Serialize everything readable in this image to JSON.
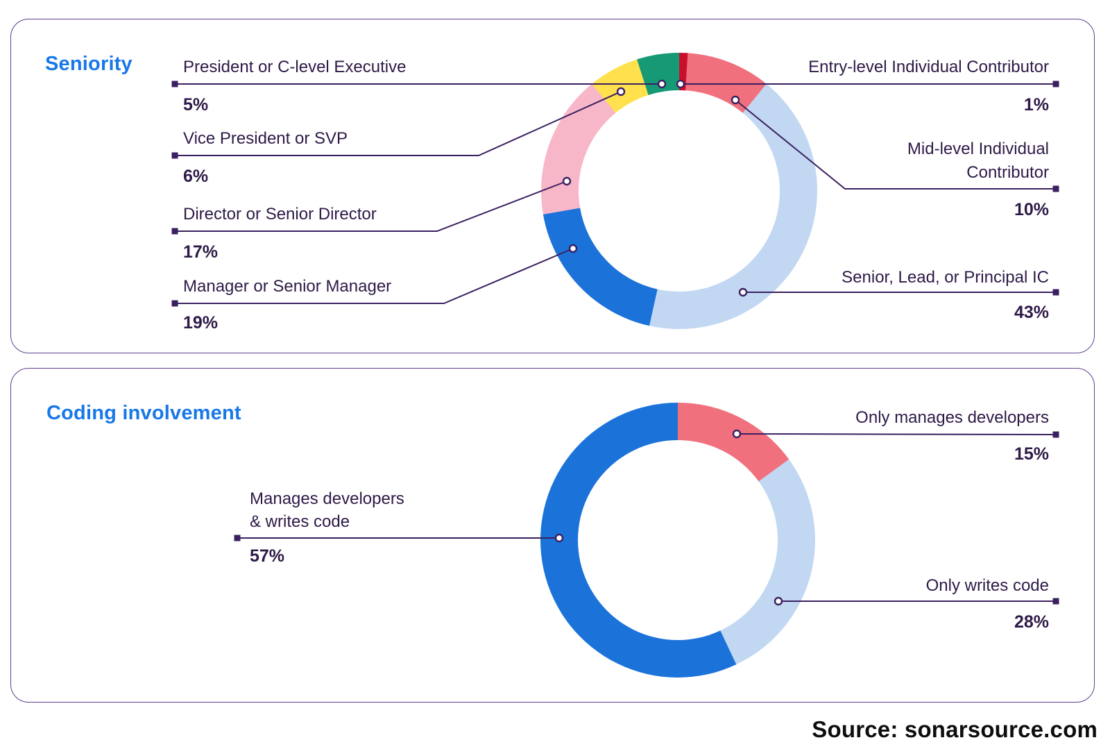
{
  "page": {
    "background": "#FFFFFF",
    "source_text": "Source: sonarsource.com"
  },
  "colors": {
    "title_blue": "#1878E8",
    "text_dark": "#2E1A47",
    "line": "#3A2060",
    "panel_border": "#5C3D8F",
    "dark_red": "#C8102E",
    "salmon": "#F0707E",
    "light_blue": "#C2D8F2",
    "blue": "#1B73D9",
    "pink": "#F8B7C9",
    "yellow": "#FFE14D",
    "green": "#169A76"
  },
  "chart_data": [
    {
      "type": "pie",
      "subtype": "donut",
      "title": "Seniority",
      "start_angle_deg": 0,
      "direction": "clockwise",
      "hole_ratio": 0.73,
      "labels_position": "callouts-left-and-right",
      "slices": [
        {
          "label": "Entry-level Individual Contributor",
          "value": 1,
          "display": "1%",
          "color": "dark_red"
        },
        {
          "label": "Mid-level Individual\nContributor",
          "value": 10,
          "display": "10%",
          "color": "salmon"
        },
        {
          "label": "Senior, Lead, or Principal IC",
          "value": 43,
          "display": "43%",
          "color": "light_blue"
        },
        {
          "label": "Manager or Senior Manager",
          "value": 19,
          "display": "19%",
          "color": "blue"
        },
        {
          "label": "Director or Senior Director",
          "value": 17,
          "display": "17%",
          "color": "pink"
        },
        {
          "label": "Vice President or SVP",
          "value": 6,
          "display": "6%",
          "color": "yellow"
        },
        {
          "label": "President or C-level Executive",
          "value": 5,
          "display": "5%",
          "color": "green"
        }
      ]
    },
    {
      "type": "pie",
      "subtype": "donut",
      "title": "Coding involvement",
      "start_angle_deg": 0,
      "direction": "clockwise",
      "hole_ratio": 0.73,
      "labels_position": "callouts-left-and-right",
      "slices": [
        {
          "label": "Only manages developers",
          "value": 15,
          "display": "15%",
          "color": "salmon"
        },
        {
          "label": "Only writes code",
          "value": 28,
          "display": "28%",
          "color": "light_blue"
        },
        {
          "label": "Manages developers\n& writes code",
          "value": 57,
          "display": "57%",
          "color": "blue"
        }
      ]
    }
  ]
}
